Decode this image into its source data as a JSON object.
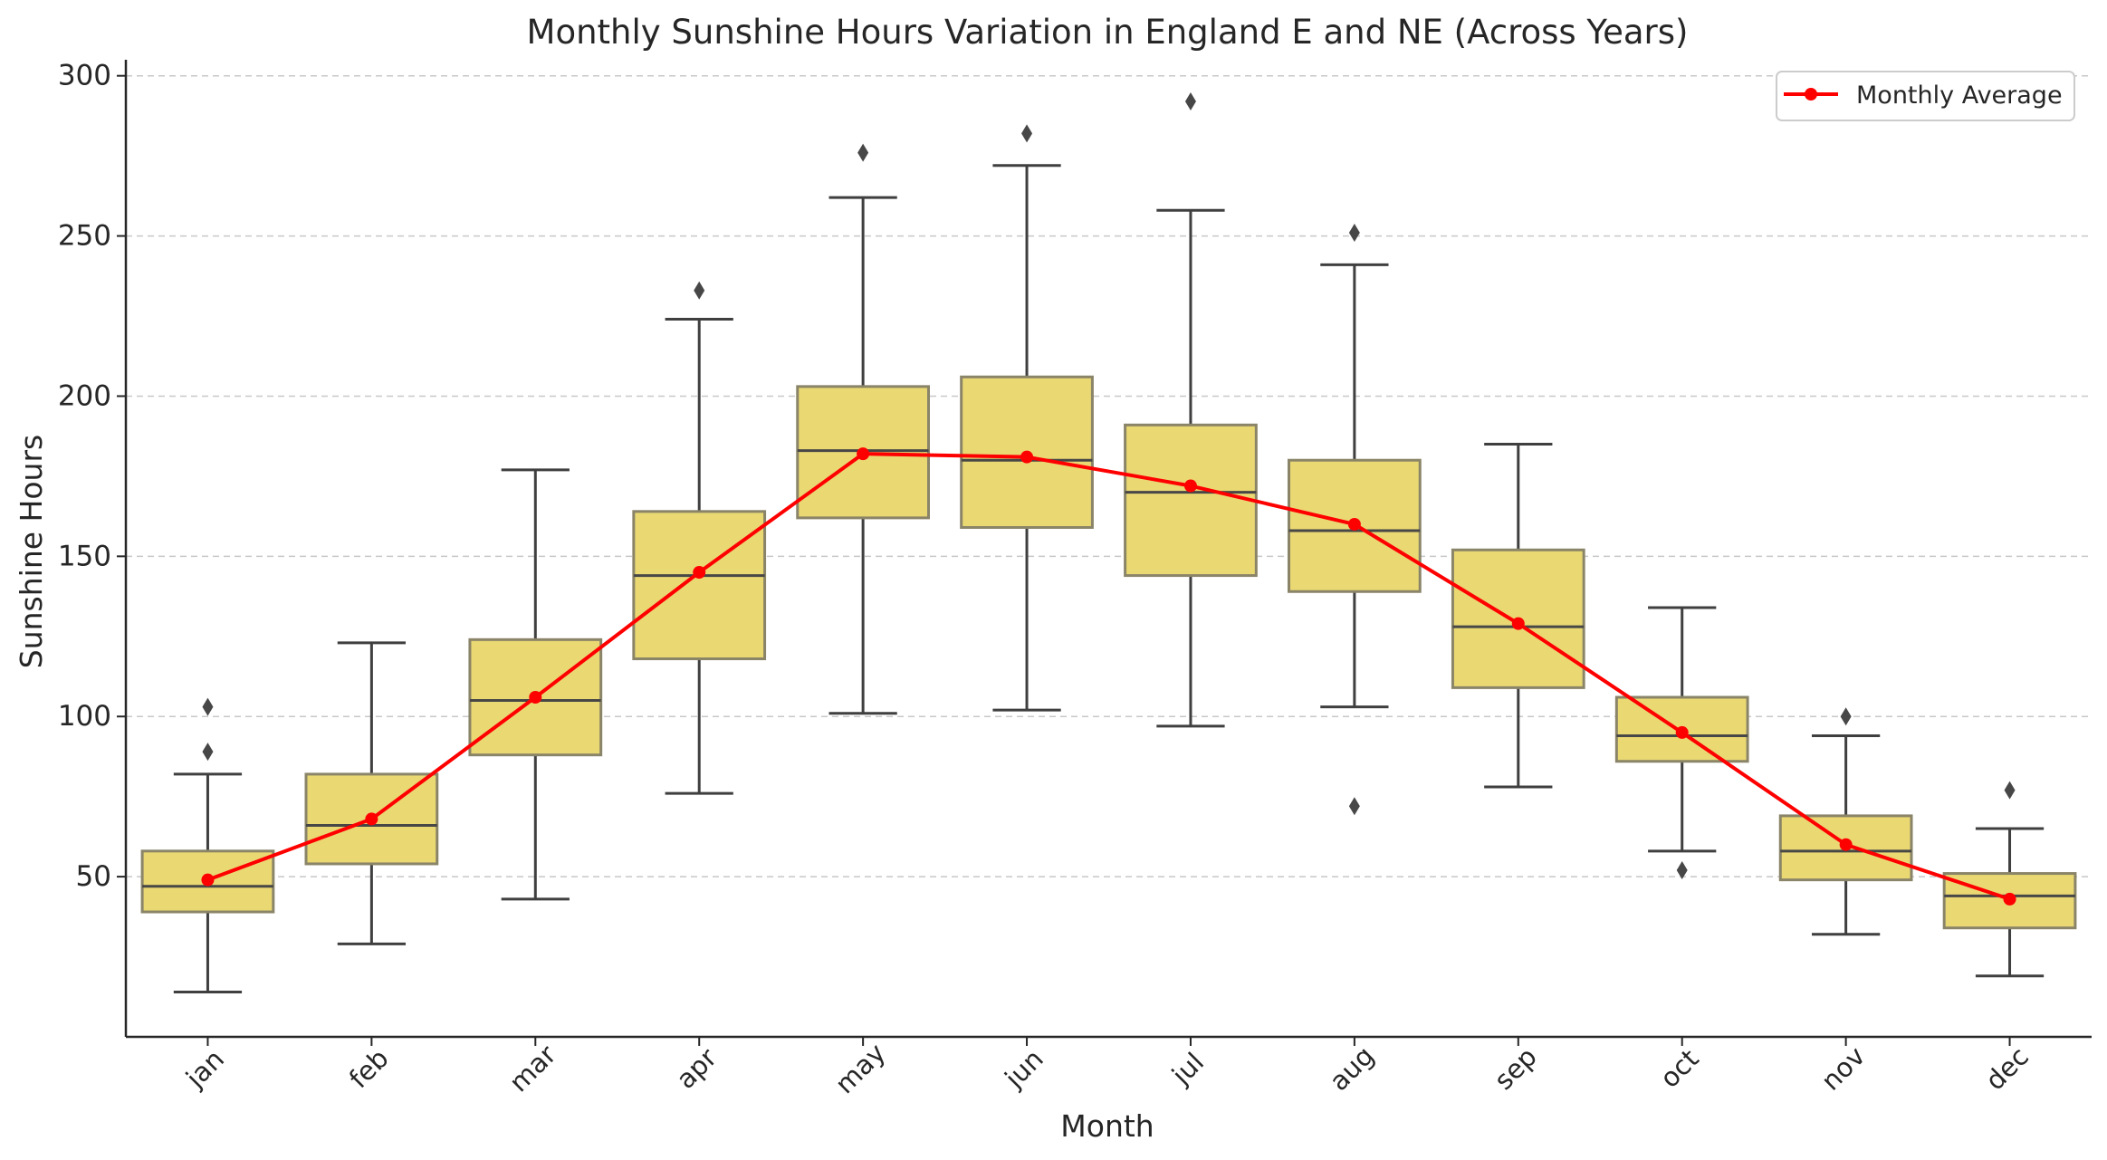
{
  "chart_data": {
    "type": "box",
    "title": "Monthly Sunshine Hours Variation in England E and NE (Across Years)",
    "xlabel": "Month",
    "ylabel": "Sunshine Hours",
    "categories": [
      "jan",
      "feb",
      "mar",
      "apr",
      "may",
      "jun",
      "jul",
      "aug",
      "sep",
      "oct",
      "nov",
      "dec"
    ],
    "ylim": [
      0,
      305
    ],
    "yticks": [
      50,
      100,
      150,
      200,
      250,
      300
    ],
    "grid": true,
    "legend_position": "top-right",
    "box_color": "#eaD873",
    "box_edge_color": "#8a8468",
    "whisker_color": "#3f3f3f",
    "average_color": "#ff0000",
    "boxes": [
      {
        "month": "jan",
        "whisker_low": 14,
        "q1": 39,
        "median": 47,
        "q3": 58,
        "whisker_high": 82,
        "outliers": [
          89,
          103
        ]
      },
      {
        "month": "feb",
        "whisker_low": 29,
        "q1": 54,
        "median": 66,
        "q3": 82,
        "whisker_high": 123,
        "outliers": []
      },
      {
        "month": "mar",
        "whisker_low": 43,
        "q1": 88,
        "median": 105,
        "q3": 124,
        "whisker_high": 177,
        "outliers": []
      },
      {
        "month": "apr",
        "whisker_low": 76,
        "q1": 118,
        "median": 144,
        "q3": 164,
        "whisker_high": 224,
        "outliers": [
          233
        ]
      },
      {
        "month": "may",
        "whisker_low": 101,
        "q1": 162,
        "median": 183,
        "q3": 203,
        "whisker_high": 262,
        "outliers": [
          276
        ]
      },
      {
        "month": "jun",
        "whisker_low": 102,
        "q1": 159,
        "median": 180,
        "q3": 206,
        "whisker_high": 272,
        "outliers": [
          282
        ]
      },
      {
        "month": "jul",
        "whisker_low": 97,
        "q1": 144,
        "median": 170,
        "q3": 191,
        "whisker_high": 258,
        "outliers": [
          292
        ]
      },
      {
        "month": "aug",
        "whisker_low": 103,
        "q1": 139,
        "median": 158,
        "q3": 180,
        "whisker_high": 241,
        "outliers": [
          72,
          251
        ]
      },
      {
        "month": "sep",
        "whisker_low": 78,
        "q1": 109,
        "median": 128,
        "q3": 152,
        "whisker_high": 185,
        "outliers": []
      },
      {
        "month": "oct",
        "whisker_low": 58,
        "q1": 86,
        "median": 94,
        "q3": 106,
        "whisker_high": 134,
        "outliers": [
          52
        ]
      },
      {
        "month": "nov",
        "whisker_low": 32,
        "q1": 49,
        "median": 58,
        "q3": 69,
        "whisker_high": 94,
        "outliers": [
          100
        ]
      },
      {
        "month": "dec",
        "whisker_low": 19,
        "q1": 34,
        "median": 44,
        "q3": 51,
        "whisker_high": 65,
        "outliers": [
          77
        ]
      }
    ],
    "series": [
      {
        "name": "Monthly Average",
        "type": "line",
        "color": "#ff0000",
        "values": [
          49,
          68,
          106,
          145,
          182,
          181,
          172,
          160,
          129,
          95,
          60,
          43
        ]
      }
    ]
  }
}
